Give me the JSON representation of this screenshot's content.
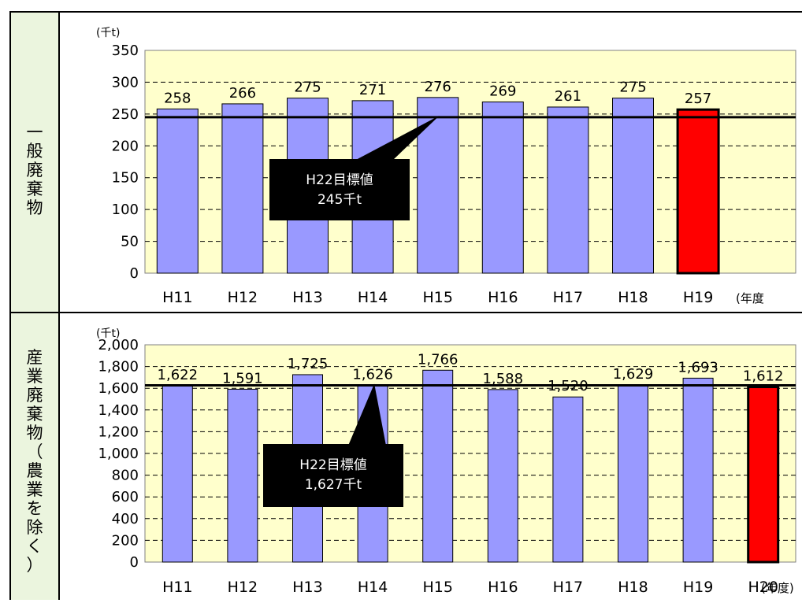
{
  "panels": [
    {
      "side_label": "一般廃棄物",
      "chart_data": {
        "type": "bar",
        "categories": [
          "H11",
          "H12",
          "H13",
          "H14",
          "H15",
          "H16",
          "H17",
          "H18",
          "H19",
          ""
        ],
        "values": [
          258,
          266,
          275,
          271,
          276,
          269,
          261,
          275,
          257,
          null
        ],
        "value_labels": [
          "258",
          "266",
          "275",
          "271",
          "276",
          "269",
          "261",
          "275",
          "257",
          ""
        ],
        "highlight_index": 8,
        "ylabel": "(千t)",
        "xlabel": "(年度",
        "ylim": [
          0,
          350
        ],
        "yticks": [
          0,
          50,
          100,
          150,
          200,
          250,
          300,
          350
        ],
        "ytick_labels": [
          "0",
          "50",
          "100",
          "150",
          "200",
          "250",
          "300",
          "350"
        ],
        "target_value": 245,
        "target_label_lines": [
          "H22目標値",
          "245千t"
        ],
        "grid": true,
        "colors": {
          "bar": "#9999ff",
          "highlight": "#ff0000",
          "plot_bg": "#ffffcc"
        }
      }
    },
    {
      "side_label": "産業廃棄物（農業を除く）",
      "chart_data": {
        "type": "bar",
        "categories": [
          "H11",
          "H12",
          "H13",
          "H14",
          "H15",
          "H16",
          "H17",
          "H18",
          "H19",
          "H20"
        ],
        "values": [
          1622,
          1591,
          1725,
          1626,
          1766,
          1588,
          1520,
          1629,
          1693,
          1612
        ],
        "value_labels": [
          "1,622",
          "1,591",
          "1,725",
          "1,626",
          "1,766",
          "1,588",
          "1,520",
          "1,629",
          "1,693",
          "1,612"
        ],
        "highlight_index": 9,
        "ylabel": "(千t)",
        "xlabel": "(年度)",
        "ylim": [
          0,
          2000
        ],
        "yticks": [
          0,
          200,
          400,
          600,
          800,
          1000,
          1200,
          1400,
          1600,
          1800,
          2000
        ],
        "ytick_labels": [
          "0",
          "200",
          "400",
          "600",
          "800",
          "1,000",
          "1,200",
          "1,400",
          "1,600",
          "1,800",
          "2,000"
        ],
        "target_value": 1627,
        "target_label_lines": [
          "H22目標値",
          "1,627千t"
        ],
        "grid": true,
        "colors": {
          "bar": "#9999ff",
          "highlight": "#ff0000",
          "plot_bg": "#ffffcc"
        }
      }
    }
  ]
}
